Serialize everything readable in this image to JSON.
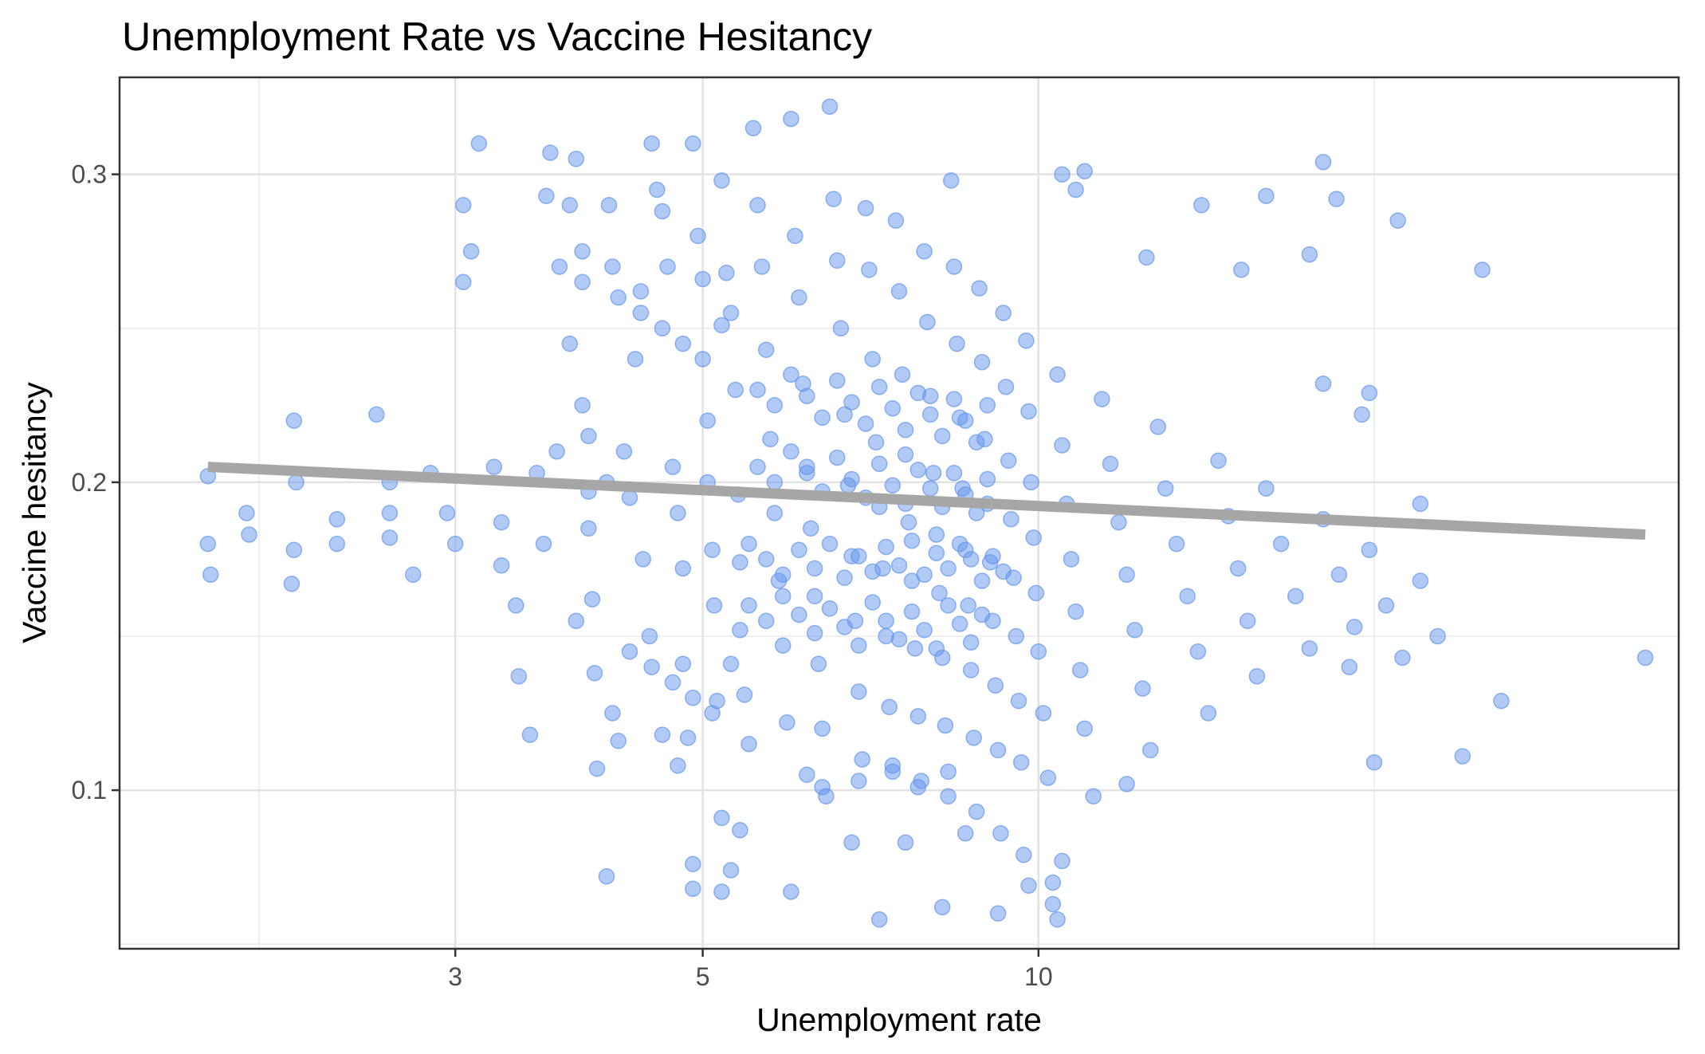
{
  "chart_data": {
    "type": "scatter",
    "title": "Unemployment Rate vs Vaccine Hesitancy",
    "xlabel": "Unemployment rate",
    "ylabel": "Vaccine hesitancy",
    "x_scale": "log10",
    "xlim": [
      1.5,
      37.5
    ],
    "ylim": [
      0.0485,
      0.3315
    ],
    "x_ticks": [
      {
        "value": 3,
        "label": "3"
      },
      {
        "value": 5,
        "label": "5"
      },
      {
        "value": 10,
        "label": "10"
      }
    ],
    "y_ticks": [
      {
        "value": 0.1,
        "label": "0.1"
      },
      {
        "value": 0.2,
        "label": "0.2"
      },
      {
        "value": 0.3,
        "label": "0.3"
      }
    ],
    "x_minor_gridlines": [
      2,
      20
    ],
    "y_minor_gridlines": [
      0.05,
      0.15,
      0.25
    ],
    "grid": true,
    "legend": "none",
    "point_color": "#6495ED",
    "point_opacity": 0.5,
    "fit_line_color": "#A6A6A6",
    "fit_line": {
      "x": [
        1.8,
        35
      ],
      "y": [
        0.205,
        0.183
      ]
    },
    "points": [
      [
        1.8,
        0.202
      ],
      [
        1.8,
        0.18
      ],
      [
        1.81,
        0.17
      ],
      [
        1.95,
        0.19
      ],
      [
        1.96,
        0.183
      ],
      [
        2.15,
        0.22
      ],
      [
        2.16,
        0.2
      ],
      [
        2.15,
        0.178
      ],
      [
        2.14,
        0.167
      ],
      [
        2.35,
        0.18
      ],
      [
        2.35,
        0.188
      ],
      [
        2.55,
        0.222
      ],
      [
        2.62,
        0.2
      ],
      [
        2.62,
        0.19
      ],
      [
        2.62,
        0.182
      ],
      [
        2.75,
        0.17
      ],
      [
        2.85,
        0.203
      ],
      [
        2.95,
        0.19
      ],
      [
        3.0,
        0.18
      ],
      [
        3.05,
        0.29
      ],
      [
        3.1,
        0.275
      ],
      [
        3.05,
        0.265
      ],
      [
        3.15,
        0.31
      ],
      [
        3.25,
        0.205
      ],
      [
        3.3,
        0.187
      ],
      [
        3.3,
        0.173
      ],
      [
        3.4,
        0.16
      ],
      [
        3.42,
        0.137
      ],
      [
        3.5,
        0.118
      ],
      [
        3.55,
        0.203
      ],
      [
        3.6,
        0.18
      ],
      [
        3.62,
        0.293
      ],
      [
        3.65,
        0.307
      ],
      [
        3.7,
        0.21
      ],
      [
        3.72,
        0.27
      ],
      [
        3.8,
        0.29
      ],
      [
        3.85,
        0.305
      ],
      [
        3.9,
        0.275
      ],
      [
        3.95,
        0.215
      ],
      [
        3.95,
        0.197
      ],
      [
        3.95,
        0.185
      ],
      [
        3.98,
        0.162
      ],
      [
        4.0,
        0.138
      ],
      [
        4.02,
        0.107
      ],
      [
        4.1,
        0.2
      ],
      [
        4.12,
        0.29
      ],
      [
        4.15,
        0.27
      ],
      [
        4.25,
        0.21
      ],
      [
        4.3,
        0.195
      ],
      [
        4.35,
        0.24
      ],
      [
        4.4,
        0.262
      ],
      [
        4.42,
        0.175
      ],
      [
        4.48,
        0.15
      ],
      [
        4.5,
        0.31
      ],
      [
        4.55,
        0.295
      ],
      [
        4.6,
        0.288
      ],
      [
        4.65,
        0.27
      ],
      [
        4.7,
        0.205
      ],
      [
        4.75,
        0.19
      ],
      [
        4.8,
        0.172
      ],
      [
        4.8,
        0.141
      ],
      [
        4.85,
        0.117
      ],
      [
        4.9,
        0.31
      ],
      [
        4.95,
        0.28
      ],
      [
        5.0,
        0.266
      ],
      [
        5.05,
        0.22
      ],
      [
        5.05,
        0.2
      ],
      [
        5.1,
        0.178
      ],
      [
        5.12,
        0.16
      ],
      [
        5.15,
        0.129
      ],
      [
        5.2,
        0.298
      ],
      [
        5.25,
        0.268
      ],
      [
        5.3,
        0.255
      ],
      [
        5.35,
        0.23
      ],
      [
        5.38,
        0.196
      ],
      [
        5.4,
        0.174
      ],
      [
        5.4,
        0.152
      ],
      [
        5.45,
        0.131
      ],
      [
        5.5,
        0.115
      ],
      [
        5.55,
        0.315
      ],
      [
        5.6,
        0.29
      ],
      [
        5.65,
        0.27
      ],
      [
        5.7,
        0.243
      ],
      [
        5.75,
        0.214
      ],
      [
        5.8,
        0.19
      ],
      [
        5.85,
        0.168
      ],
      [
        5.9,
        0.147
      ],
      [
        5.95,
        0.122
      ],
      [
        6.0,
        0.318
      ],
      [
        6.05,
        0.28
      ],
      [
        6.1,
        0.26
      ],
      [
        6.15,
        0.232
      ],
      [
        6.2,
        0.205
      ],
      [
        6.25,
        0.185
      ],
      [
        6.3,
        0.163
      ],
      [
        6.35,
        0.141
      ],
      [
        6.4,
        0.12
      ],
      [
        6.45,
        0.098
      ],
      [
        6.5,
        0.322
      ],
      [
        6.55,
        0.292
      ],
      [
        6.6,
        0.272
      ],
      [
        6.65,
        0.25
      ],
      [
        6.7,
        0.222
      ],
      [
        6.75,
        0.199
      ],
      [
        6.8,
        0.176
      ],
      [
        6.85,
        0.155
      ],
      [
        6.9,
        0.132
      ],
      [
        6.95,
        0.11
      ],
      [
        7.0,
        0.289
      ],
      [
        7.05,
        0.269
      ],
      [
        7.1,
        0.24
      ],
      [
        7.15,
        0.213
      ],
      [
        7.2,
        0.192
      ],
      [
        7.25,
        0.172
      ],
      [
        7.3,
        0.15
      ],
      [
        7.35,
        0.127
      ],
      [
        7.4,
        0.106
      ],
      [
        7.45,
        0.285
      ],
      [
        7.5,
        0.262
      ],
      [
        7.55,
        0.235
      ],
      [
        7.6,
        0.209
      ],
      [
        7.65,
        0.187
      ],
      [
        7.7,
        0.168
      ],
      [
        7.75,
        0.146
      ],
      [
        7.8,
        0.124
      ],
      [
        7.85,
        0.103
      ],
      [
        7.9,
        0.275
      ],
      [
        7.95,
        0.252
      ],
      [
        8.0,
        0.228
      ],
      [
        8.05,
        0.203
      ],
      [
        8.1,
        0.183
      ],
      [
        8.15,
        0.164
      ],
      [
        8.2,
        0.143
      ],
      [
        8.25,
        0.121
      ],
      [
        8.3,
        0.098
      ],
      [
        8.35,
        0.298
      ],
      [
        8.4,
        0.27
      ],
      [
        8.45,
        0.245
      ],
      [
        8.5,
        0.221
      ],
      [
        8.55,
        0.198
      ],
      [
        8.6,
        0.178
      ],
      [
        8.65,
        0.16
      ],
      [
        8.7,
        0.139
      ],
      [
        8.75,
        0.117
      ],
      [
        8.8,
        0.093
      ],
      [
        8.85,
        0.263
      ],
      [
        8.9,
        0.239
      ],
      [
        8.95,
        0.214
      ],
      [
        9.0,
        0.193
      ],
      [
        9.05,
        0.174
      ],
      [
        9.1,
        0.155
      ],
      [
        9.15,
        0.134
      ],
      [
        9.2,
        0.113
      ],
      [
        9.25,
        0.086
      ],
      [
        9.3,
        0.255
      ],
      [
        9.35,
        0.231
      ],
      [
        9.4,
        0.207
      ],
      [
        9.45,
        0.188
      ],
      [
        9.5,
        0.169
      ],
      [
        9.55,
        0.15
      ],
      [
        9.6,
        0.129
      ],
      [
        9.65,
        0.109
      ],
      [
        9.7,
        0.079
      ],
      [
        9.75,
        0.246
      ],
      [
        9.8,
        0.223
      ],
      [
        9.85,
        0.2
      ],
      [
        9.9,
        0.182
      ],
      [
        9.95,
        0.164
      ],
      [
        10.0,
        0.145
      ],
      [
        10.1,
        0.125
      ],
      [
        10.2,
        0.104
      ],
      [
        10.3,
        0.07
      ],
      [
        10.4,
        0.235
      ],
      [
        10.5,
        0.212
      ],
      [
        10.6,
        0.193
      ],
      [
        10.7,
        0.175
      ],
      [
        10.8,
        0.158
      ],
      [
        10.9,
        0.139
      ],
      [
        11.0,
        0.12
      ],
      [
        11.2,
        0.098
      ],
      [
        11.4,
        0.227
      ],
      [
        11.6,
        0.206
      ],
      [
        11.8,
        0.187
      ],
      [
        12.0,
        0.17
      ],
      [
        12.2,
        0.152
      ],
      [
        12.4,
        0.133
      ],
      [
        12.6,
        0.113
      ],
      [
        12.8,
        0.218
      ],
      [
        13.0,
        0.198
      ],
      [
        13.3,
        0.18
      ],
      [
        13.6,
        0.163
      ],
      [
        13.9,
        0.145
      ],
      [
        14.2,
        0.125
      ],
      [
        14.5,
        0.207
      ],
      [
        14.8,
        0.189
      ],
      [
        15.1,
        0.172
      ],
      [
        15.4,
        0.155
      ],
      [
        15.7,
        0.137
      ],
      [
        16.0,
        0.198
      ],
      [
        16.5,
        0.18
      ],
      [
        17.0,
        0.163
      ],
      [
        17.5,
        0.146
      ],
      [
        18.0,
        0.188
      ],
      [
        18.6,
        0.17
      ],
      [
        19.2,
        0.153
      ],
      [
        19.8,
        0.178
      ],
      [
        20.5,
        0.16
      ],
      [
        21.2,
        0.143
      ],
      [
        22.0,
        0.168
      ],
      [
        22.8,
        0.15
      ],
      [
        10.5,
        0.3
      ],
      [
        10.8,
        0.295
      ],
      [
        11.0,
        0.301
      ],
      [
        12.5,
        0.273
      ],
      [
        14.0,
        0.29
      ],
      [
        15.2,
        0.269
      ],
      [
        16.0,
        0.293
      ],
      [
        17.5,
        0.274
      ],
      [
        18.0,
        0.304
      ],
      [
        18.5,
        0.292
      ],
      [
        21.0,
        0.285
      ],
      [
        25.0,
        0.269
      ],
      [
        19.8,
        0.229
      ],
      [
        19.5,
        0.222
      ],
      [
        18.0,
        0.232
      ],
      [
        22.0,
        0.193
      ],
      [
        19.0,
        0.14
      ],
      [
        20.0,
        0.109
      ],
      [
        24.0,
        0.111
      ],
      [
        26.0,
        0.129
      ],
      [
        35.0,
        0.143
      ],
      [
        12.0,
        0.102
      ],
      [
        10.3,
        0.063
      ],
      [
        10.4,
        0.058
      ],
      [
        9.2,
        0.06
      ],
      [
        8.2,
        0.062
      ],
      [
        7.2,
        0.058
      ],
      [
        6.0,
        0.067
      ],
      [
        5.2,
        0.067
      ],
      [
        4.9,
        0.068
      ],
      [
        4.9,
        0.076
      ],
      [
        5.3,
        0.074
      ],
      [
        5.2,
        0.091
      ],
      [
        5.4,
        0.087
      ],
      [
        4.1,
        0.072
      ],
      [
        6.8,
        0.083
      ],
      [
        7.6,
        0.083
      ],
      [
        8.6,
        0.086
      ],
      [
        9.8,
        0.069
      ],
      [
        10.5,
        0.077
      ],
      [
        5.5,
        0.18
      ],
      [
        5.7,
        0.175
      ],
      [
        5.9,
        0.17
      ],
      [
        6.1,
        0.178
      ],
      [
        6.3,
        0.172
      ],
      [
        6.5,
        0.18
      ],
      [
        6.7,
        0.169
      ],
      [
        6.9,
        0.176
      ],
      [
        7.1,
        0.171
      ],
      [
        7.3,
        0.179
      ],
      [
        7.5,
        0.173
      ],
      [
        7.7,
        0.181
      ],
      [
        7.9,
        0.17
      ],
      [
        8.1,
        0.177
      ],
      [
        8.3,
        0.172
      ],
      [
        8.5,
        0.18
      ],
      [
        8.7,
        0.175
      ],
      [
        8.9,
        0.168
      ],
      [
        9.1,
        0.176
      ],
      [
        9.3,
        0.171
      ],
      [
        5.6,
        0.23
      ],
      [
        5.8,
        0.225
      ],
      [
        6.0,
        0.235
      ],
      [
        6.2,
        0.228
      ],
      [
        6.4,
        0.221
      ],
      [
        6.6,
        0.233
      ],
      [
        6.8,
        0.226
      ],
      [
        7.0,
        0.219
      ],
      [
        7.2,
        0.231
      ],
      [
        7.4,
        0.224
      ],
      [
        7.6,
        0.217
      ],
      [
        7.8,
        0.229
      ],
      [
        8.0,
        0.222
      ],
      [
        8.2,
        0.215
      ],
      [
        8.4,
        0.227
      ],
      [
        8.6,
        0.22
      ],
      [
        8.8,
        0.213
      ],
      [
        9.0,
        0.225
      ],
      [
        5.5,
        0.16
      ],
      [
        5.7,
        0.155
      ],
      [
        5.9,
        0.163
      ],
      [
        6.1,
        0.157
      ],
      [
        6.3,
        0.151
      ],
      [
        6.5,
        0.159
      ],
      [
        6.7,
        0.153
      ],
      [
        6.9,
        0.147
      ],
      [
        7.1,
        0.161
      ],
      [
        7.3,
        0.155
      ],
      [
        7.5,
        0.149
      ],
      [
        7.7,
        0.158
      ],
      [
        7.9,
        0.152
      ],
      [
        8.1,
        0.146
      ],
      [
        8.3,
        0.16
      ],
      [
        8.5,
        0.154
      ],
      [
        8.7,
        0.148
      ],
      [
        8.9,
        0.157
      ],
      [
        5.6,
        0.205
      ],
      [
        5.8,
        0.2
      ],
      [
        6.0,
        0.21
      ],
      [
        6.2,
        0.203
      ],
      [
        6.4,
        0.197
      ],
      [
        6.6,
        0.208
      ],
      [
        6.8,
        0.201
      ],
      [
        7.0,
        0.195
      ],
      [
        7.2,
        0.206
      ],
      [
        7.4,
        0.199
      ],
      [
        7.6,
        0.193
      ],
      [
        7.8,
        0.204
      ],
      [
        8.0,
        0.198
      ],
      [
        8.2,
        0.192
      ],
      [
        8.4,
        0.203
      ],
      [
        8.6,
        0.196
      ],
      [
        8.8,
        0.19
      ],
      [
        9.0,
        0.201
      ],
      [
        4.2,
        0.26
      ],
      [
        4.4,
        0.255
      ],
      [
        4.6,
        0.25
      ],
      [
        4.8,
        0.245
      ],
      [
        5.0,
        0.24
      ],
      [
        5.2,
        0.251
      ],
      [
        4.3,
        0.145
      ],
      [
        4.5,
        0.14
      ],
      [
        4.7,
        0.135
      ],
      [
        4.9,
        0.13
      ],
      [
        5.1,
        0.125
      ],
      [
        5.3,
        0.141
      ],
      [
        3.9,
        0.265
      ],
      [
        3.8,
        0.245
      ],
      [
        3.9,
        0.225
      ],
      [
        3.85,
        0.155
      ],
      [
        4.15,
        0.125
      ],
      [
        4.2,
        0.116
      ],
      [
        4.6,
        0.118
      ],
      [
        4.75,
        0.108
      ],
      [
        6.2,
        0.105
      ],
      [
        6.4,
        0.101
      ],
      [
        6.9,
        0.103
      ],
      [
        7.4,
        0.108
      ],
      [
        7.8,
        0.101
      ],
      [
        8.3,
        0.106
      ]
    ]
  }
}
